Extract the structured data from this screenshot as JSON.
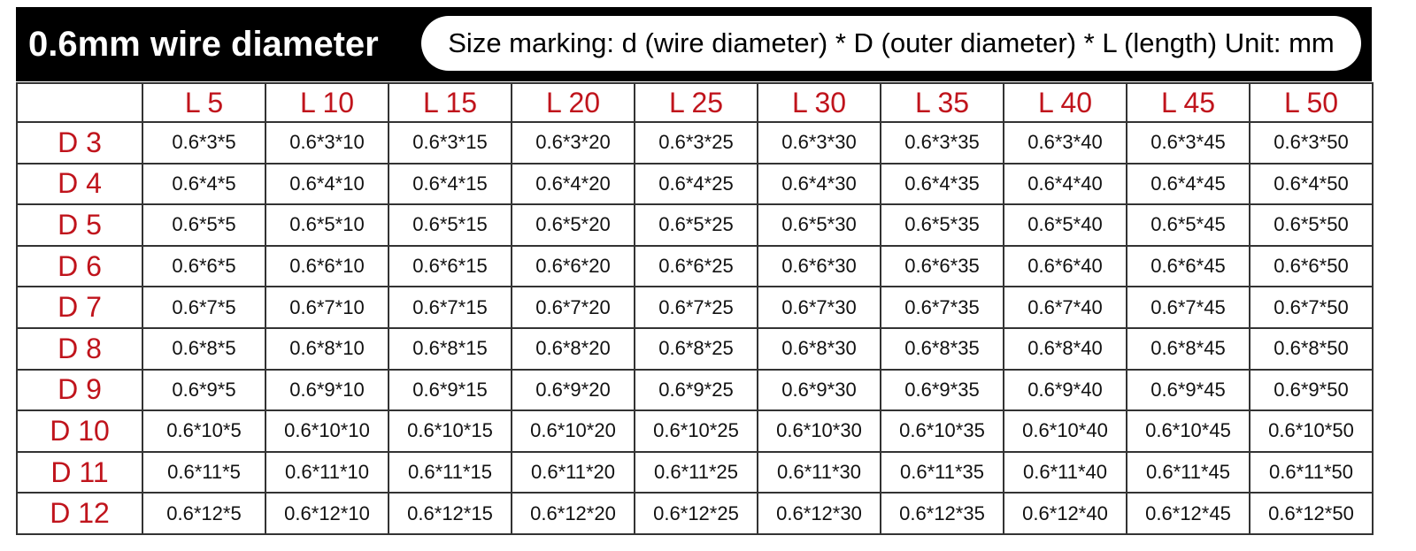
{
  "header": {
    "title": "0.6mm wire diameter",
    "subtitle": "Size marking: d (wire diameter) * D (outer diameter) * L (length)  Unit: mm"
  },
  "table": {
    "columns": [
      "L 5",
      "L 10",
      "L 15",
      "L 20",
      "L 25",
      "L 30",
      "L 35",
      "L 40",
      "L 45",
      "L 50"
    ],
    "rows": [
      {
        "label": "D 3",
        "cells": [
          "0.6*3*5",
          "0.6*3*10",
          "0.6*3*15",
          "0.6*3*20",
          "0.6*3*25",
          "0.6*3*30",
          "0.6*3*35",
          "0.6*3*40",
          "0.6*3*45",
          "0.6*3*50"
        ]
      },
      {
        "label": "D 4",
        "cells": [
          "0.6*4*5",
          "0.6*4*10",
          "0.6*4*15",
          "0.6*4*20",
          "0.6*4*25",
          "0.6*4*30",
          "0.6*4*35",
          "0.6*4*40",
          "0.6*4*45",
          "0.6*4*50"
        ]
      },
      {
        "label": "D 5",
        "cells": [
          "0.6*5*5",
          "0.6*5*10",
          "0.6*5*15",
          "0.6*5*20",
          "0.6*5*25",
          "0.6*5*30",
          "0.6*5*35",
          "0.6*5*40",
          "0.6*5*45",
          "0.6*5*50"
        ]
      },
      {
        "label": "D 6",
        "cells": [
          "0.6*6*5",
          "0.6*6*10",
          "0.6*6*15",
          "0.6*6*20",
          "0.6*6*25",
          "0.6*6*30",
          "0.6*6*35",
          "0.6*6*40",
          "0.6*6*45",
          "0.6*6*50"
        ]
      },
      {
        "label": "D 7",
        "cells": [
          "0.6*7*5",
          "0.6*7*10",
          "0.6*7*15",
          "0.6*7*20",
          "0.6*7*25",
          "0.6*7*30",
          "0.6*7*35",
          "0.6*7*40",
          "0.6*7*45",
          "0.6*7*50"
        ]
      },
      {
        "label": "D 8",
        "cells": [
          "0.6*8*5",
          "0.6*8*10",
          "0.6*8*15",
          "0.6*8*20",
          "0.6*8*25",
          "0.6*8*30",
          "0.6*8*35",
          "0.6*8*40",
          "0.6*8*45",
          "0.6*8*50"
        ]
      },
      {
        "label": "D 9",
        "cells": [
          "0.6*9*5",
          "0.6*9*10",
          "0.6*9*15",
          "0.6*9*20",
          "0.6*9*25",
          "0.6*9*30",
          "0.6*9*35",
          "0.6*9*40",
          "0.6*9*45",
          "0.6*9*50"
        ]
      },
      {
        "label": "D 10",
        "cells": [
          "0.6*10*5",
          "0.6*10*10",
          "0.6*10*15",
          "0.6*10*20",
          "0.6*10*25",
          "0.6*10*30",
          "0.6*10*35",
          "0.6*10*40",
          "0.6*10*45",
          "0.6*10*50"
        ]
      },
      {
        "label": "D 11",
        "cells": [
          "0.6*11*5",
          "0.6*11*10",
          "0.6*11*15",
          "0.6*11*20",
          "0.6*11*25",
          "0.6*11*30",
          "0.6*11*35",
          "0.6*11*40",
          "0.6*11*45",
          "0.6*11*50"
        ]
      },
      {
        "label": "D 12",
        "cells": [
          "0.6*12*5",
          "0.6*12*10",
          "0.6*12*15",
          "0.6*12*20",
          "0.6*12*25",
          "0.6*12*30",
          "0.6*12*35",
          "0.6*12*40",
          "0.6*12*45",
          "0.6*12*50"
        ]
      }
    ]
  }
}
